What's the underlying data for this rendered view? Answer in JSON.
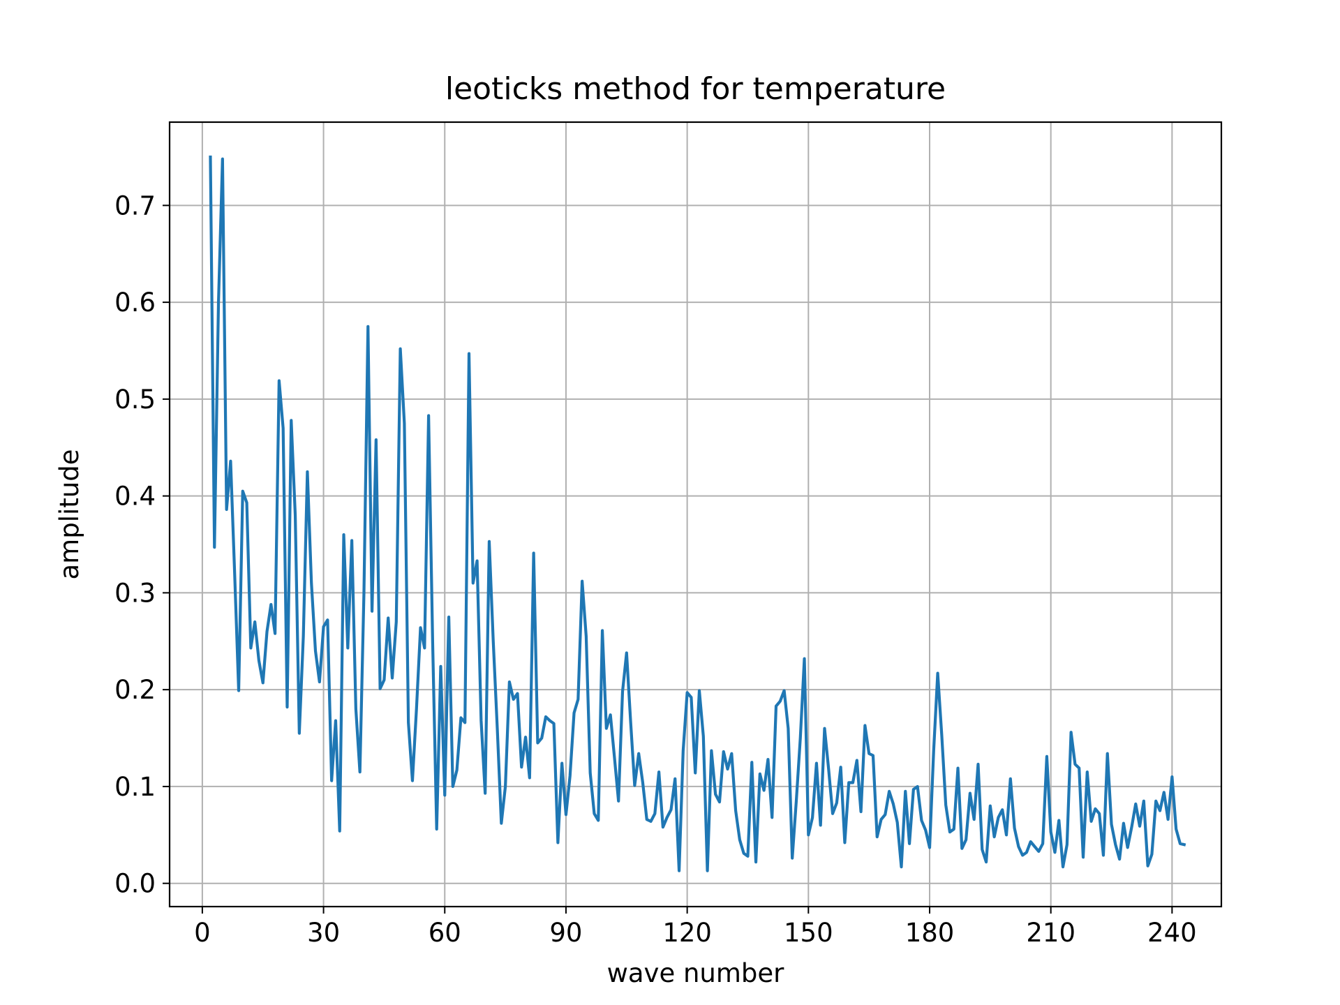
{
  "chart_data": {
    "type": "line",
    "title": "leoticks method for temperature",
    "xlabel": "wave number",
    "ylabel": "amplitude",
    "xlim": [
      -8.1,
      252.2
    ],
    "ylim": [
      -0.024,
      0.786
    ],
    "xticks": [
      0,
      30,
      60,
      90,
      120,
      150,
      180,
      210,
      240
    ],
    "yticks": [
      0.0,
      0.1,
      0.2,
      0.3,
      0.4,
      0.5,
      0.6,
      0.7
    ],
    "ytick_labels": [
      "0.0",
      "0.1",
      "0.2",
      "0.3",
      "0.4",
      "0.5",
      "0.6",
      "0.7"
    ],
    "grid": true,
    "legend": "none",
    "colors": {
      "line": "#1f77b4",
      "grid": "#b0b0b0",
      "axes": "#000000",
      "background": "#ffffff"
    },
    "series": [
      {
        "x_start": 2,
        "x_step": 1,
        "values": [
          0.75,
          0.347,
          0.6,
          0.748,
          0.386,
          0.436,
          0.32,
          0.199,
          0.405,
          0.393,
          0.243,
          0.27,
          0.23,
          0.207,
          0.26,
          0.288,
          0.258,
          0.519,
          0.47,
          0.182,
          0.478,
          0.38,
          0.155,
          0.255,
          0.425,
          0.31,
          0.24,
          0.208,
          0.265,
          0.272,
          0.106,
          0.168,
          0.054,
          0.36,
          0.243,
          0.354,
          0.18,
          0.115,
          0.3,
          0.575,
          0.281,
          0.458,
          0.201,
          0.21,
          0.274,
          0.212,
          0.27,
          0.552,
          0.475,
          0.166,
          0.106,
          0.18,
          0.264,
          0.243,
          0.483,
          0.25,
          0.056,
          0.224,
          0.091,
          0.275,
          0.1,
          0.117,
          0.171,
          0.166,
          0.547,
          0.31,
          0.333,
          0.168,
          0.093,
          0.353,
          0.25,
          0.16,
          0.062,
          0.1,
          0.208,
          0.19,
          0.196,
          0.12,
          0.151,
          0.109,
          0.341,
          0.145,
          0.15,
          0.172,
          0.168,
          0.165,
          0.042,
          0.124,
          0.071,
          0.111,
          0.176,
          0.19,
          0.312,
          0.255,
          0.114,
          0.072,
          0.065,
          0.261,
          0.16,
          0.174,
          0.13,
          0.085,
          0.198,
          0.238,
          0.167,
          0.101,
          0.134,
          0.104,
          0.066,
          0.064,
          0.072,
          0.115,
          0.058,
          0.068,
          0.076,
          0.108,
          0.013,
          0.137,
          0.197,
          0.192,
          0.114,
          0.199,
          0.152,
          0.013,
          0.137,
          0.092,
          0.084,
          0.136,
          0.118,
          0.134,
          0.075,
          0.045,
          0.031,
          0.028,
          0.125,
          0.022,
          0.113,
          0.096,
          0.128,
          0.068,
          0.183,
          0.188,
          0.199,
          0.16,
          0.026,
          0.085,
          0.15,
          0.232,
          0.05,
          0.068,
          0.124,
          0.06,
          0.16,
          0.118,
          0.072,
          0.083,
          0.12,
          0.042,
          0.104,
          0.104,
          0.127,
          0.074,
          0.163,
          0.134,
          0.132,
          0.048,
          0.066,
          0.071,
          0.095,
          0.082,
          0.063,
          0.017,
          0.095,
          0.041,
          0.097,
          0.1,
          0.065,
          0.055,
          0.037,
          0.137,
          0.217,
          0.153,
          0.081,
          0.053,
          0.056,
          0.119,
          0.036,
          0.045,
          0.093,
          0.066,
          0.123,
          0.035,
          0.022,
          0.08,
          0.048,
          0.068,
          0.076,
          0.05,
          0.108,
          0.057,
          0.038,
          0.029,
          0.032,
          0.043,
          0.038,
          0.033,
          0.041,
          0.131,
          0.053,
          0.032,
          0.065,
          0.017,
          0.04,
          0.156,
          0.123,
          0.119,
          0.027,
          0.115,
          0.064,
          0.077,
          0.072,
          0.029,
          0.134,
          0.061,
          0.04,
          0.025,
          0.062,
          0.037,
          0.058,
          0.082,
          0.059,
          0.085,
          0.018,
          0.03,
          0.085,
          0.075,
          0.094,
          0.066,
          0.11,
          0.056,
          0.041,
          0.04
        ]
      }
    ]
  }
}
